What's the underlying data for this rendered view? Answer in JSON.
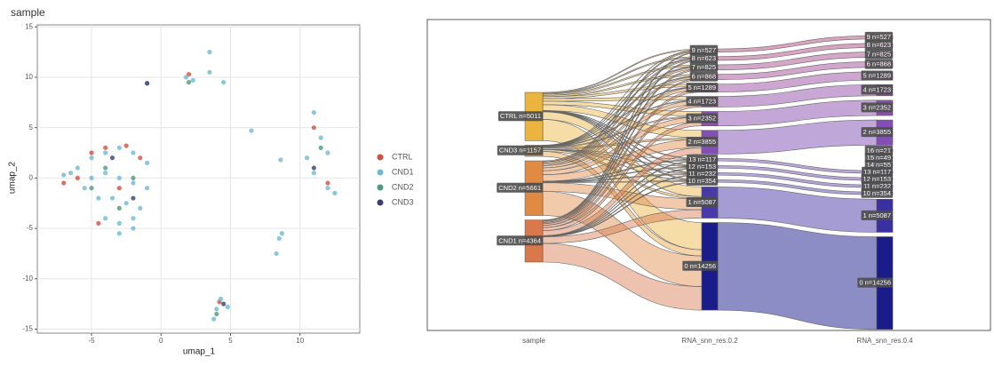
{
  "chart_data": [
    {
      "type": "scatter",
      "title": "sample",
      "xlabel": "umap_1",
      "ylabel": "umap_2",
      "xlim": [
        -8.9,
        14.3
      ],
      "ylim": [
        -15.4,
        15.2
      ],
      "xticks": [
        -5,
        0,
        5,
        10
      ],
      "yticks": [
        -15,
        -10,
        -5,
        0,
        5,
        10,
        15
      ],
      "grid": true,
      "legend": "right",
      "series": [
        {
          "name": "CTRL",
          "color": "#d2503e",
          "x": [
            -5,
            -4,
            -2.5,
            -6,
            -3,
            -1.5,
            2,
            11,
            12,
            4.2,
            -7,
            -4.5
          ],
          "y": [
            2.5,
            3,
            3.2,
            0,
            -1,
            2,
            10.3,
            5,
            -0.5,
            -12.3,
            -0.5,
            -4.5
          ]
        },
        {
          "name": "CND1",
          "color": "#6db9d6",
          "x": [
            -6,
            -5,
            -4,
            -3,
            -2,
            -1,
            -5,
            -4,
            -3,
            -2,
            -1,
            -4.5,
            -3.5,
            -2.5,
            -1.5,
            -4,
            -3,
            -2,
            -5.5,
            -6.5,
            -3,
            -2,
            1.8,
            2.3,
            3.5,
            3.5,
            4.3,
            4,
            4.8,
            3.8,
            11,
            11.5,
            10.5,
            12,
            12,
            12.5,
            11,
            6.5,
            8.5,
            8.7,
            8.3,
            -1,
            4.5,
            8.6,
            -7
          ],
          "y": [
            1,
            2,
            2.5,
            3,
            2.5,
            1.5,
            0,
            0.5,
            0,
            -0.5,
            -1,
            -2,
            -2,
            -2.5,
            -3,
            -4,
            -4.5,
            -5,
            -1,
            0.5,
            -5.5,
            -4,
            10,
            9.7,
            12.5,
            10.5,
            -12,
            -13,
            -12.8,
            -14,
            6.5,
            4,
            2,
            2.5,
            -1,
            -1.5,
            0.5,
            4.7,
            -6,
            -5.5,
            -7.5,
            9.4,
            9.5,
            1.8,
            0.3
          ]
        },
        {
          "name": "CND2",
          "color": "#4f9a7c",
          "x": [
            -4,
            -2,
            -3,
            11.5,
            4,
            2,
            -5
          ],
          "y": [
            1,
            0,
            -3,
            3,
            -13.5,
            9.5,
            -1
          ]
        },
        {
          "name": "CND3",
          "color": "#3b3f78",
          "x": [
            -3.5,
            -2,
            11,
            -1,
            4.5
          ],
          "y": [
            2,
            -2,
            1,
            9.4,
            -12.5
          ]
        }
      ]
    },
    {
      "type": "sankey",
      "columns": [
        {
          "title": "sample",
          "nodes": [
            {
              "label": "CTRL n=5011",
              "n": 5011,
              "color": "#eab43e"
            },
            {
              "label": "CND3 n=1157",
              "n": 1157,
              "color": "#e8a23e"
            },
            {
              "label": "CND2 n=5661",
              "n": 5661,
              "color": "#e08a44"
            },
            {
              "label": "CND1 n=4364",
              "n": 4364,
              "color": "#d8784c"
            }
          ]
        },
        {
          "title": "RNA_snn_res.0.2",
          "nodes": [
            {
              "label": "9 n=527",
              "n": 527,
              "color": "#b44a7a"
            },
            {
              "label": "8 n=623",
              "n": 623,
              "color": "#b04c86"
            },
            {
              "label": "7 n=825",
              "n": 825,
              "color": "#aa4e90"
            },
            {
              "label": "6 n=868",
              "n": 868,
              "color": "#a44e9a"
            },
            {
              "label": "5 n=1289",
              "n": 1289,
              "color": "#9c4ea4"
            },
            {
              "label": "4 n=1723",
              "n": 1723,
              "color": "#9450ac"
            },
            {
              "label": "3 n=2352",
              "n": 2352,
              "color": "#8c50b0"
            },
            {
              "label": "2 n=3855",
              "n": 3855,
              "color": "#8250b4"
            },
            {
              "label": "13 n=117",
              "n": 117,
              "color": "#7a4eb6"
            },
            {
              "label": "12 n=153",
              "n": 153,
              "color": "#724cb6"
            },
            {
              "label": "11 n=232",
              "n": 232,
              "color": "#6a4ab4"
            },
            {
              "label": "10 n=354",
              "n": 354,
              "color": "#6248b2"
            },
            {
              "label": "1 n=5087",
              "n": 5087,
              "color": "#4a3aa8"
            },
            {
              "label": "0 n=14256",
              "n": 14256,
              "color": "#1a1c8a"
            }
          ]
        },
        {
          "title": "RNA_snn_res.0.4",
          "nodes": [
            {
              "label": "9 n=527",
              "n": 527,
              "color": "#b44a7a"
            },
            {
              "label": "8 n=623",
              "n": 623,
              "color": "#b04c86"
            },
            {
              "label": "7 n=825",
              "n": 825,
              "color": "#aa4e90"
            },
            {
              "label": "6 n=868",
              "n": 868,
              "color": "#a44e9a"
            },
            {
              "label": "5 n=1289",
              "n": 1289,
              "color": "#9c4ea4"
            },
            {
              "label": "4 n=1723",
              "n": 1723,
              "color": "#9450ac"
            },
            {
              "label": "3 n=2352",
              "n": 2352,
              "color": "#8c50b0"
            },
            {
              "label": "2 n=3855",
              "n": 3855,
              "color": "#8250b4"
            },
            {
              "label": "16 n=21",
              "n": 21,
              "color": "#7a50b6"
            },
            {
              "label": "15 n=49",
              "n": 49,
              "color": "#764eb6"
            },
            {
              "label": "14 n=55",
              "n": 55,
              "color": "#724cb6"
            },
            {
              "label": "13 n=117",
              "n": 117,
              "color": "#6e4cb6"
            },
            {
              "label": "12 n=153",
              "n": 153,
              "color": "#6a4ab4"
            },
            {
              "label": "11 n=232",
              "n": 232,
              "color": "#6448b2"
            },
            {
              "label": "10 n=354",
              "n": 354,
              "color": "#5e46b0"
            },
            {
              "label": "1 n=5087",
              "n": 5087,
              "color": "#3a30a0"
            },
            {
              "label": "0 n=14256",
              "n": 14256,
              "color": "#1a1c8a"
            }
          ]
        }
      ]
    }
  ]
}
